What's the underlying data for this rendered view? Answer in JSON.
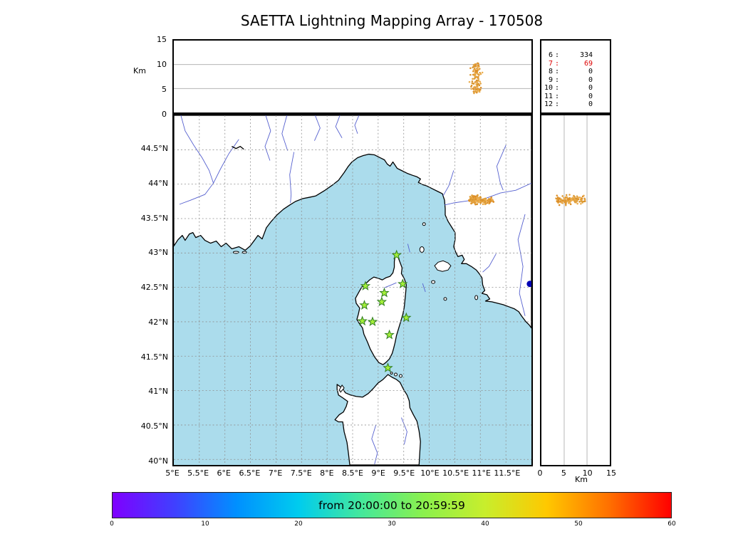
{
  "title": "SAETTA Lightning Mapping Array - 170508",
  "alt_lon_panel": {
    "ylabel": "Km",
    "yticks": [
      {
        "v": 15,
        "label": "15"
      },
      {
        "v": 10,
        "label": "10"
      },
      {
        "v": 5,
        "label": "5"
      },
      {
        "v": 0,
        "label": "0"
      }
    ]
  },
  "stats_panel": {
    "rows": [
      {
        "label": "6",
        "value": "334",
        "highlight": false
      },
      {
        "label": "7",
        "value": "69",
        "highlight": true
      },
      {
        "label": "8",
        "value": "0",
        "highlight": false
      },
      {
        "label": "9",
        "value": "0",
        "highlight": false
      },
      {
        "label": "10",
        "value": "0",
        "highlight": false
      },
      {
        "label": "11",
        "value": "0",
        "highlight": false
      },
      {
        "label": "12",
        "value": "0",
        "highlight": false
      }
    ]
  },
  "map_panel": {
    "lat_ticks": [
      {
        "v": 44.5,
        "label": "44.5°N"
      },
      {
        "v": 44,
        "label": "44°N"
      },
      {
        "v": 43.5,
        "label": "43.5°N"
      },
      {
        "v": 43,
        "label": "43°N"
      },
      {
        "v": 42.5,
        "label": "42.5°N"
      },
      {
        "v": 42,
        "label": "42°N"
      },
      {
        "v": 41.5,
        "label": "41.5°N"
      },
      {
        "v": 41,
        "label": "41°N"
      },
      {
        "v": 40.5,
        "label": "40.5°N"
      },
      {
        "v": 40,
        "label": "40°N"
      }
    ],
    "lon_ticks": [
      {
        "v": 5,
        "label": "5°E"
      },
      {
        "v": 5.5,
        "label": "5.5°E"
      },
      {
        "v": 6,
        "label": "6°E"
      },
      {
        "v": 6.5,
        "label": "6.5°E"
      },
      {
        "v": 7,
        "label": "7°E"
      },
      {
        "v": 7.5,
        "label": "7.5°E"
      },
      {
        "v": 8,
        "label": "8°E"
      },
      {
        "v": 8.5,
        "label": "8.5°E"
      },
      {
        "v": 9,
        "label": "9°E"
      },
      {
        "v": 9.5,
        "label": "9.5°E"
      },
      {
        "v": 10,
        "label": "10°E"
      },
      {
        "v": 10.5,
        "label": "10.5°E"
      },
      {
        "v": 11,
        "label": "11°E"
      },
      {
        "v": 11.5,
        "label": "11.5°E"
      }
    ]
  },
  "alt_lat_panel": {
    "xlabel": "Km",
    "xticks": [
      {
        "v": 0,
        "label": "0"
      },
      {
        "v": 5,
        "label": "5"
      },
      {
        "v": 10,
        "label": "10"
      },
      {
        "v": 15,
        "label": "15"
      }
    ]
  },
  "colorbar": {
    "label": "from 20:00:00 to 20:59:59",
    "range": [
      0,
      60
    ],
    "ticks": [
      {
        "v": 0,
        "label": "0"
      },
      {
        "v": 10,
        "label": "10"
      },
      {
        "v": 20,
        "label": "20"
      },
      {
        "v": 30,
        "label": "30"
      },
      {
        "v": 40,
        "label": "40"
      },
      {
        "v": 50,
        "label": "50"
      },
      {
        "v": 60,
        "label": "60"
      }
    ],
    "gradient": [
      "#7f00ff",
      "#4040ff",
      "#0090ff",
      "#00ccee",
      "#44e89c",
      "#8af04e",
      "#c8ee2c",
      "#ffc800",
      "#ff7000",
      "#ff0000"
    ]
  },
  "colors": {
    "sea": "#abdcec",
    "land": "#ffffff",
    "coast": "#000000",
    "river": "#5560cf",
    "grid": "#8f8f8f",
    "station_fill": "#a4ef3a",
    "station_edge": "#2f7d1f",
    "highlight_red": "#dd0000",
    "blue_marker": "#0000b4",
    "lightning": [
      "#e2a13c",
      "#d9952e",
      "#ecae50",
      "#de8f28"
    ]
  },
  "chart_data": [
    {
      "type": "scatter",
      "name": "altitude_vs_longitude",
      "ylabel": "Km",
      "ylim": [
        0,
        15
      ],
      "yticks": [
        0,
        5,
        10,
        15
      ],
      "xlim": [
        5,
        12
      ],
      "grid": "horizontal lines at 5 and 10 km",
      "series": [
        {
          "name": "lma_sources",
          "cluster": {
            "n": 120,
            "lon_mean": 10.92,
            "lon_sd": 0.045,
            "alt_min": 4.0,
            "alt_max": 10.3
          }
        }
      ]
    },
    {
      "type": "table",
      "name": "sources_per_min_stations",
      "columns": [
        "min_stations",
        "num_sources"
      ],
      "rows": [
        [
          6,
          334
        ],
        [
          7,
          69
        ],
        [
          8,
          0
        ],
        [
          9,
          0
        ],
        [
          10,
          0
        ],
        [
          11,
          0
        ],
        [
          12,
          0
        ]
      ],
      "highlighted_row": [
        7,
        69
      ]
    },
    {
      "type": "scatter",
      "name": "map_lon_lat",
      "xlim": [
        5,
        12
      ],
      "ylim": [
        39.92,
        45.0
      ],
      "grid": "dashed every 0.5 degree",
      "stations": [
        [
          9.36,
          42.97
        ],
        [
          8.75,
          42.52
        ],
        [
          9.12,
          42.42
        ],
        [
          9.48,
          42.55
        ],
        [
          8.73,
          42.24
        ],
        [
          9.07,
          42.29
        ],
        [
          8.69,
          42.01
        ],
        [
          8.89,
          42.0
        ],
        [
          9.55,
          42.06
        ],
        [
          9.22,
          41.81
        ],
        [
          9.19,
          41.33
        ]
      ],
      "lightning_clusters": [
        {
          "n": 95,
          "lon_mean": 10.9,
          "lon_sd": 0.05,
          "lat_mean": 43.78,
          "lat_sd": 0.026
        },
        {
          "n": 45,
          "lon_mean": 11.13,
          "lon_sd": 0.055,
          "lat_mean": 43.76,
          "lat_sd": 0.02
        }
      ],
      "blue_marker": [
        11.97,
        42.55
      ]
    },
    {
      "type": "scatter",
      "name": "altitude_vs_latitude",
      "xlabel": "Km",
      "xlim": [
        0,
        15
      ],
      "xticks": [
        0,
        5,
        10,
        15
      ],
      "ylim": [
        39.92,
        45.0
      ],
      "grid": "vertical lines at 5 and 10 km",
      "cluster": {
        "n": 120,
        "alt_min": 3.2,
        "alt_max": 9.6,
        "lat_mean": 43.77,
        "lat_sd": 0.03
      }
    },
    {
      "type": "colorbar",
      "name": "time_colorbar",
      "label": "from 20:00:00 to 20:59:59",
      "range": [
        0,
        60
      ],
      "ticks": [
        0,
        10,
        20,
        30,
        40,
        50,
        60
      ]
    }
  ]
}
